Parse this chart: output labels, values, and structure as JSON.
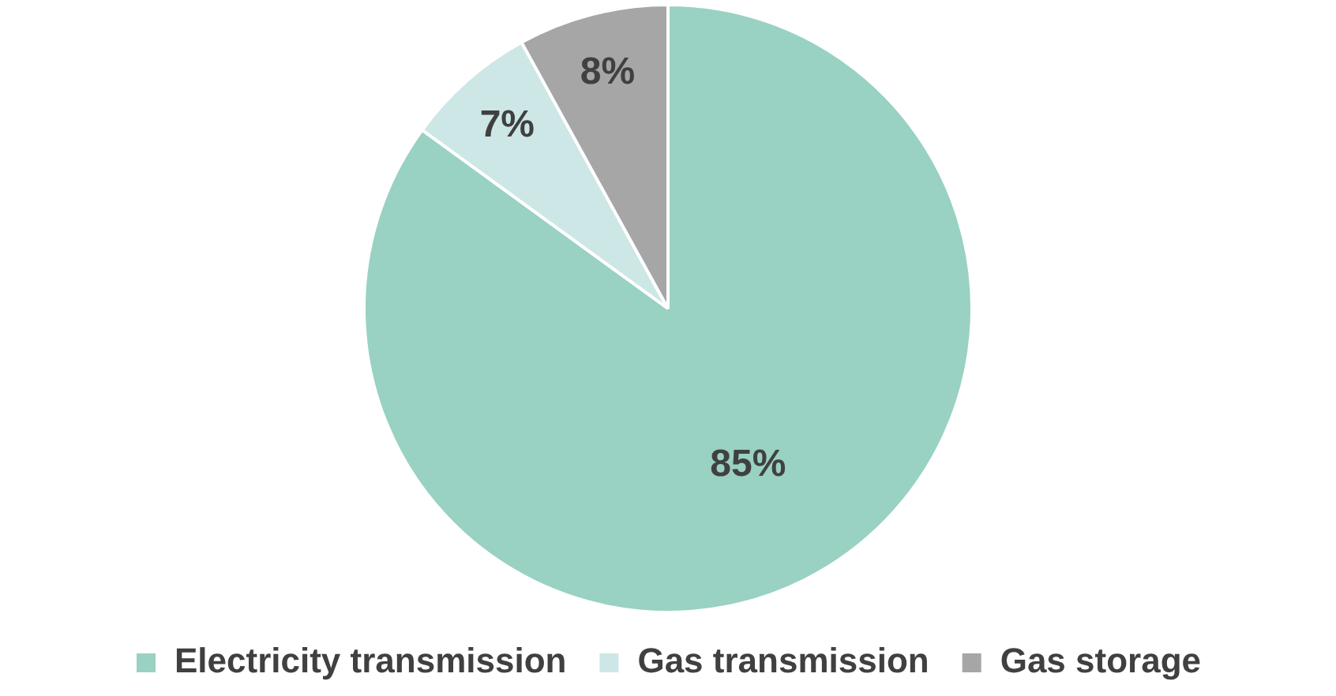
{
  "chart_data": {
    "type": "pie",
    "categories": [
      "Electricity transmission",
      "Gas transmission",
      "Gas storage"
    ],
    "values": [
      85,
      7,
      8
    ],
    "colors": [
      "#99d1c2",
      "#cde6e6",
      "#a6a6a6"
    ],
    "value_labels": [
      "85%",
      "7%",
      "8%"
    ],
    "legend": "bottom"
  }
}
